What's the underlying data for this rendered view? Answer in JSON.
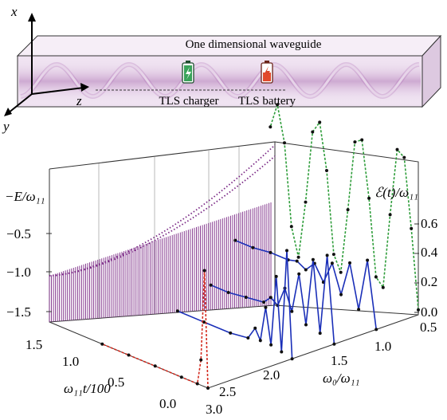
{
  "figure": {
    "top_panel": {
      "waveguide_label": "One dimensional waveguide",
      "charger_label": "TLS charger",
      "battery_label": "TLS battery",
      "axis_x": "x",
      "axis_y": "y",
      "axis_z": "z",
      "colors": {
        "waveguide_fill": "#ecdcef",
        "wave_glow": "#a35aaa",
        "charger_accent": "#2e9d57",
        "battery_accent": "#d9472b"
      },
      "icons": [
        "charger-battery-icon",
        "low-battery-icon"
      ]
    },
    "bottom_panel": {
      "left_axis_label": "−E/ω₁₁",
      "right_axis_label": "ℰ(t)/ω₁₁",
      "time_axis_label": "ω₁₁t/100",
      "freq_axis_label": "ω₀/ω₁₁"
    }
  },
  "chart_data": {
    "type": "line",
    "title": "",
    "axes": {
      "energy": {
        "label": "−E/ω₁₁",
        "ticks": [
          "−0.5",
          "−1.0",
          "−1.5"
        ],
        "range": [
          -1.6,
          -0.2
        ]
      },
      "ergotropy": {
        "label": "ℰ(t)/ω₁₁",
        "ticks": [
          "0.6",
          "0.4",
          "0.2",
          "0.0"
        ],
        "range": [
          0.0,
          0.7
        ]
      },
      "time": {
        "label": "ω₁₁t/100",
        "ticks": [
          "1.5",
          "1.0",
          "0.5",
          "0.0"
        ],
        "range": [
          0.0,
          1.8
        ]
      },
      "frequency": {
        "label": "ω₀/ω₁₁",
        "ticks": [
          "0.5",
          "1.0",
          "1.5",
          "2.0",
          "2.5",
          "3.0"
        ],
        "range": [
          0.5,
          3.0
        ]
      }
    },
    "series": [
      {
        "omega0": 0.5,
        "color": "#2e9d3a",
        "points": [
          [
            0.0,
            0.02
          ],
          [
            0.08,
            0.33
          ],
          [
            0.16,
            0.6
          ],
          [
            0.24,
            0.62
          ],
          [
            0.32,
            0.35
          ],
          [
            0.4,
            0.05
          ],
          [
            0.48,
            0.08
          ],
          [
            0.56,
            0.38
          ],
          [
            0.64,
            0.6
          ],
          [
            0.72,
            0.58
          ],
          [
            0.8,
            0.3
          ],
          [
            0.88,
            0.04
          ],
          [
            0.96,
            0.1
          ],
          [
            1.04,
            0.42
          ],
          [
            1.12,
            0.6
          ],
          [
            1.2,
            0.55
          ],
          [
            1.28,
            0.26
          ],
          [
            1.36,
            0.03
          ],
          [
            1.44,
            0.14
          ],
          [
            1.52,
            0.46
          ],
          [
            1.6,
            0.6
          ],
          [
            1.68,
            0.5
          ]
        ]
      },
      {
        "omega0": 1.0,
        "color": "#1a2fb8",
        "points": [
          [
            0.0,
            0.0
          ],
          [
            0.1,
            0.26
          ],
          [
            0.2,
            0.05
          ],
          [
            0.3,
            0.22
          ],
          [
            0.4,
            0.08
          ],
          [
            0.5,
            0.19
          ],
          [
            0.6,
            0.1
          ],
          [
            0.7,
            0.16
          ],
          [
            0.8,
            0.12
          ],
          [
            0.9,
            0.14
          ],
          [
            1.0,
            0.13
          ],
          [
            1.2,
            0.13
          ],
          [
            1.4,
            0.12
          ],
          [
            1.6,
            0.12
          ]
        ]
      },
      {
        "omega0": 1.5,
        "color": "#1a2fb8",
        "points": [
          [
            0.0,
            0.0
          ],
          [
            0.08,
            0.34
          ],
          [
            0.16,
            0.02
          ],
          [
            0.24,
            0.3
          ],
          [
            0.32,
            0.03
          ],
          [
            0.4,
            0.22
          ],
          [
            0.48,
            0.06
          ],
          [
            0.56,
            0.14
          ],
          [
            0.64,
            0.06
          ],
          [
            0.72,
            0.08
          ],
          [
            0.8,
            0.05
          ],
          [
            1.0,
            0.04
          ],
          [
            1.2,
            0.03
          ],
          [
            1.4,
            0.03
          ]
        ]
      },
      {
        "omega0": 2.0,
        "color": "#1a2fb8",
        "points": [
          [
            0.0,
            0.0
          ],
          [
            0.06,
            0.42
          ],
          [
            0.12,
            0.01
          ],
          [
            0.18,
            0.3
          ],
          [
            0.24,
            0.02
          ],
          [
            0.3,
            0.16
          ],
          [
            0.36,
            0.02
          ],
          [
            0.42,
            0.06
          ],
          [
            0.5,
            0.01
          ],
          [
            0.7,
            0.0
          ],
          [
            1.0,
            0.0
          ],
          [
            1.3,
            0.0
          ]
        ]
      },
      {
        "omega0": 3.0,
        "color": "#d42a1e",
        "points": [
          [
            0.0,
            0.0
          ],
          [
            0.04,
            0.46
          ],
          [
            0.08,
            0.1
          ],
          [
            0.12,
            0.0
          ],
          [
            0.3,
            0.0
          ],
          [
            0.6,
            0.0
          ],
          [
            0.9,
            0.0
          ],
          [
            1.2,
            0.0
          ]
        ]
      }
    ],
    "bound_states": {
      "color": "#7b2a86",
      "count": 2,
      "lines": "dense vertical lines on back wall"
    },
    "grid": true,
    "legend": "none"
  }
}
